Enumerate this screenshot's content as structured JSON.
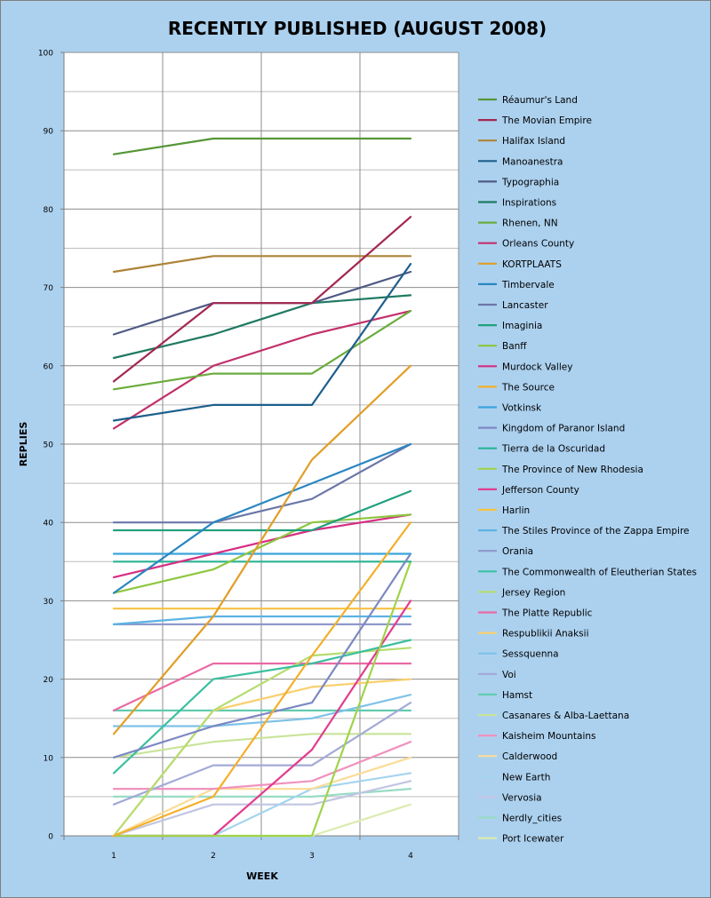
{
  "chart_data": {
    "type": "line",
    "title": "RECENTLY PUBLISHED (AUGUST 2008)",
    "xlabel": "WEEK",
    "ylabel": "REPLIES",
    "x": [
      "1",
      "2",
      "3",
      "4"
    ],
    "ylim": [
      0,
      100
    ],
    "yticks": [
      "0",
      "10",
      "20",
      "30",
      "40",
      "50",
      "60",
      "70",
      "80",
      "90",
      "100"
    ],
    "grid": true,
    "legend": "right",
    "series": [
      {
        "name": "Réaumur's Land",
        "color": "#559636",
        "values": [
          87,
          89,
          89,
          89
        ]
      },
      {
        "name": "The Movian Empire",
        "color": "#a3284f",
        "values": [
          58,
          68,
          68,
          79
        ]
      },
      {
        "name": "Halifax Island",
        "color": "#ac8337",
        "values": [
          72,
          74,
          74,
          74
        ]
      },
      {
        "name": "Manoanestra",
        "color": "#1d5f8c",
        "values": [
          53,
          55,
          55,
          73
        ]
      },
      {
        "name": "Typographia",
        "color": "#4e5a84",
        "values": [
          64,
          68,
          68,
          72
        ]
      },
      {
        "name": "Inspirations",
        "color": "#207a62",
        "values": [
          61,
          64,
          68,
          69
        ]
      },
      {
        "name": "Rhenen, NN",
        "color": "#6aac3d",
        "values": [
          57,
          59,
          59,
          67
        ]
      },
      {
        "name": "Orleans County",
        "color": "#c2316b",
        "values": [
          52,
          60,
          64,
          67
        ]
      },
      {
        "name": "KORTPLAATS",
        "color": "#e19e26",
        "values": [
          13,
          28,
          48,
          60
        ]
      },
      {
        "name": "Timbervale",
        "color": "#2a86c2",
        "values": [
          31,
          40,
          45,
          50
        ]
      },
      {
        "name": "Lancaster",
        "color": "#6a77a8",
        "values": [
          40,
          40,
          43,
          50
        ]
      },
      {
        "name": "Imaginia",
        "color": "#21a07e",
        "values": [
          39,
          39,
          39,
          44
        ]
      },
      {
        "name": "Banff",
        "color": "#8dc73f",
        "values": [
          31,
          34,
          40,
          41
        ]
      },
      {
        "name": "Murdock Valley",
        "color": "#d62e84",
        "values": [
          33,
          36,
          39,
          41
        ]
      },
      {
        "name": "The Source",
        "color": "#f4af2a",
        "values": [
          0,
          5,
          23,
          40
        ]
      },
      {
        "name": "Votkinsk",
        "color": "#3aa4dc",
        "values": [
          36,
          36,
          36,
          36
        ]
      },
      {
        "name": "Kingdom of Paranor  Island",
        "color": "#7c88c4",
        "values": [
          10,
          14,
          17,
          36
        ]
      },
      {
        "name": "Tierra de la Oscuridad",
        "color": "#2bb394",
        "values": [
          35,
          35,
          35,
          35
        ]
      },
      {
        "name": "The Province of New Rhodesia",
        "color": "#9fd34a",
        "values": [
          0,
          0,
          0,
          35
        ]
      },
      {
        "name": "Jefferson County",
        "color": "#e23c8f",
        "values": [
          0,
          0,
          11,
          30
        ]
      },
      {
        "name": "Harlin",
        "color": "#f7c142",
        "values": [
          29,
          29,
          29,
          29
        ]
      },
      {
        "name": "The Stiles Province of the Zappa Empire",
        "color": "#5cb3e3",
        "values": [
          27,
          28,
          28,
          28
        ]
      },
      {
        "name": "Orania",
        "color": "#8e98cc",
        "values": [
          27,
          27,
          27,
          27
        ]
      },
      {
        "name": "The Commonwealth of Eleutherian States",
        "color": "#3cc0a0",
        "values": [
          8,
          20,
          22,
          25
        ]
      },
      {
        "name": "Jersey Region",
        "color": "#b5dc70",
        "values": [
          0,
          16,
          23,
          24
        ]
      },
      {
        "name": "The Platte Republic",
        "color": "#ea6aa5",
        "values": [
          16,
          22,
          22,
          22
        ]
      },
      {
        "name": "Respublikii Anaksii",
        "color": "#f8d070",
        "values": [
          0,
          16,
          19,
          20
        ]
      },
      {
        "name": "Sessquenna",
        "color": "#7dc2e8",
        "values": [
          14,
          14,
          15,
          18
        ]
      },
      {
        "name": "Voi",
        "color": "#a3aad6",
        "values": [
          4,
          9,
          9,
          17
        ]
      },
      {
        "name": "Hamst",
        "color": "#62ccb0",
        "values": [
          16,
          16,
          16,
          16
        ]
      },
      {
        "name": "Casanares & Alba-Laettana",
        "color": "#c8e49a",
        "values": [
          10,
          12,
          13,
          13
        ]
      },
      {
        "name": "Kaisheim Mountains",
        "color": "#f092bd",
        "values": [
          6,
          6,
          7,
          12
        ]
      },
      {
        "name": "Calderwood",
        "color": "#fbdc98",
        "values": [
          0,
          6,
          6,
          10
        ]
      },
      {
        "name": "New Earth",
        "color": "#a4d4ee",
        "values": [
          0,
          0,
          6,
          8
        ]
      },
      {
        "name": "Vervosia",
        "color": "#c1c5e3",
        "values": [
          0,
          4,
          4,
          7
        ]
      },
      {
        "name": "Nerdly_cities",
        "color": "#98dcc5",
        "values": [
          5,
          5,
          5,
          6
        ]
      },
      {
        "name": "Port Icewater",
        "color": "#dcebb0",
        "values": [
          0,
          0,
          0,
          4
        ]
      }
    ]
  }
}
